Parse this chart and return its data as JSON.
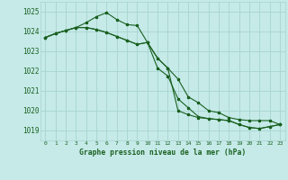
{
  "title": "Graphe pression niveau de la mer (hPa)",
  "background_color": "#c5eae8",
  "grid_color": "#a8d4d0",
  "line_color": "#1a6020",
  "xlim": [
    -0.5,
    23.5
  ],
  "ylim": [
    1018.5,
    1025.5
  ],
  "yticks": [
    1019,
    1020,
    1021,
    1022,
    1023,
    1024,
    1025
  ],
  "xticks": [
    0,
    1,
    2,
    3,
    4,
    5,
    6,
    7,
    8,
    9,
    10,
    11,
    12,
    13,
    14,
    15,
    16,
    17,
    18,
    19,
    20,
    21,
    22,
    23
  ],
  "series1_x": [
    0,
    1,
    2,
    3,
    4,
    5,
    6,
    7,
    8,
    9,
    10,
    11,
    12,
    13,
    14,
    15,
    16,
    17,
    18,
    19,
    20,
    21,
    22,
    23
  ],
  "series1_y": [
    1023.7,
    1023.9,
    1024.05,
    1024.2,
    1024.2,
    1024.1,
    1023.95,
    1023.75,
    1023.55,
    1023.35,
    1023.45,
    1022.15,
    1021.75,
    1020.6,
    1020.15,
    1019.7,
    1019.6,
    1019.55,
    1019.5,
    1019.3,
    1019.15,
    1019.1,
    1019.2,
    1019.3
  ],
  "series2_x": [
    0,
    1,
    2,
    3,
    4,
    5,
    6,
    7,
    8,
    9,
    10,
    11,
    12,
    13,
    14,
    15,
    16,
    17,
    18,
    19,
    20,
    21,
    22,
    23
  ],
  "series2_y": [
    1023.7,
    1023.9,
    1024.05,
    1024.2,
    1024.45,
    1024.75,
    1024.95,
    1024.6,
    1024.35,
    1024.3,
    1023.45,
    1022.65,
    1022.15,
    1021.6,
    1020.7,
    1020.4,
    1020.0,
    1019.9,
    1019.65,
    1019.55,
    1019.5,
    1019.5,
    1019.5,
    1019.3
  ],
  "series3_x": [
    0,
    1,
    2,
    3,
    4,
    5,
    6,
    7,
    8,
    9,
    10,
    11,
    12,
    13,
    14,
    15,
    16,
    17,
    18,
    19,
    20,
    21,
    22,
    23
  ],
  "series3_y": [
    1023.7,
    1023.9,
    1024.05,
    1024.2,
    1024.2,
    1024.1,
    1023.95,
    1023.75,
    1023.55,
    1023.35,
    1023.45,
    1022.65,
    1022.15,
    1020.0,
    1019.8,
    1019.65,
    1019.6,
    1019.55,
    1019.5,
    1019.3,
    1019.15,
    1019.1,
    1019.2,
    1019.3
  ]
}
